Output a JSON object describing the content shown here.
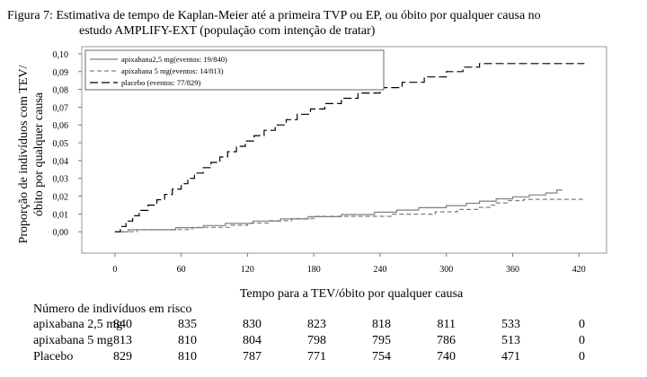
{
  "figure": {
    "caption_line1": "Figura 7: Estimativa de tempo de Kaplan-Meier até a primeira TVP ou EP, ou óbito por qualquer causa no",
    "caption_line2": "estudo AMPLIFY-EXT (população com intenção de tratar)"
  },
  "chart_data": {
    "type": "line",
    "subtype": "kaplan-meier step",
    "xlabel": "Tempo para a  TEV/óbito por qualquer causa",
    "ylabel_line1": "Proporção de indivíduos com TEV/",
    "ylabel_line2": "óbito por qualquer causa",
    "xlim": [
      -30,
      445
    ],
    "ylim": [
      -0.012,
      0.104
    ],
    "x_ticks": [
      0,
      60,
      120,
      180,
      240,
      300,
      360,
      420
    ],
    "y_ticks": [
      0.0,
      0.01,
      0.02,
      0.03,
      0.04,
      0.05,
      0.06,
      0.07,
      0.08,
      0.09,
      0.1
    ],
    "y_tick_labels": [
      "0,00",
      "0,01",
      "0,02",
      "0,03",
      "0,04",
      "0,05",
      "0,06",
      "0,07",
      "0,08",
      "0,09",
      "0,10"
    ],
    "x_tick_labels": [
      "0",
      "60",
      "120",
      "180",
      "240",
      "300",
      "360",
      "420"
    ],
    "grid": false,
    "legend_position": "top-left",
    "series": [
      {
        "name": "apixabana2,5 mg(eventos: 19/840)",
        "color": "#7f7f7f",
        "dash": "solid",
        "points": [
          [
            0,
            0.0
          ],
          [
            12,
            0.0
          ],
          [
            12,
            0.0011
          ],
          [
            55,
            0.0011
          ],
          [
            55,
            0.0023
          ],
          [
            80,
            0.0023
          ],
          [
            80,
            0.0035
          ],
          [
            100,
            0.0035
          ],
          [
            100,
            0.0047
          ],
          [
            125,
            0.0047
          ],
          [
            125,
            0.006
          ],
          [
            150,
            0.006
          ],
          [
            150,
            0.0072
          ],
          [
            175,
            0.0072
          ],
          [
            175,
            0.0085
          ],
          [
            205,
            0.0085
          ],
          [
            205,
            0.0097
          ],
          [
            235,
            0.0097
          ],
          [
            235,
            0.011
          ],
          [
            255,
            0.011
          ],
          [
            255,
            0.0122
          ],
          [
            275,
            0.0122
          ],
          [
            275,
            0.0135
          ],
          [
            300,
            0.0135
          ],
          [
            300,
            0.0147
          ],
          [
            318,
            0.0147
          ],
          [
            318,
            0.016
          ],
          [
            330,
            0.016
          ],
          [
            330,
            0.0172
          ],
          [
            345,
            0.0172
          ],
          [
            345,
            0.0185
          ],
          [
            360,
            0.0185
          ],
          [
            360,
            0.0196
          ],
          [
            375,
            0.0196
          ],
          [
            375,
            0.0207
          ],
          [
            390,
            0.0207
          ],
          [
            390,
            0.0218
          ],
          [
            400,
            0.0218
          ],
          [
            400,
            0.0235
          ],
          [
            405,
            0.0235
          ]
        ]
      },
      {
        "name": "apixabana 5 mg(eventos: 14/813)",
        "color": "#7f7f7f",
        "dash": "dashed",
        "points": [
          [
            0,
            0.0
          ],
          [
            20,
            0.0
          ],
          [
            20,
            0.0012
          ],
          [
            70,
            0.0012
          ],
          [
            70,
            0.0025
          ],
          [
            105,
            0.0025
          ],
          [
            105,
            0.0037
          ],
          [
            120,
            0.0037
          ],
          [
            120,
            0.0049
          ],
          [
            140,
            0.0049
          ],
          [
            140,
            0.0062
          ],
          [
            160,
            0.0062
          ],
          [
            160,
            0.0074
          ],
          [
            180,
            0.0074
          ],
          [
            180,
            0.0087
          ],
          [
            250,
            0.0087
          ],
          [
            250,
            0.0099
          ],
          [
            290,
            0.0099
          ],
          [
            290,
            0.0112
          ],
          [
            310,
            0.0112
          ],
          [
            310,
            0.0125
          ],
          [
            330,
            0.0125
          ],
          [
            330,
            0.0137
          ],
          [
            340,
            0.0137
          ],
          [
            340,
            0.015
          ],
          [
            345,
            0.015
          ],
          [
            345,
            0.0162
          ],
          [
            355,
            0.0162
          ],
          [
            355,
            0.0175
          ],
          [
            370,
            0.0175
          ],
          [
            370,
            0.0182
          ],
          [
            425,
            0.0182
          ]
        ]
      },
      {
        "name": "placebo (eventos: 77/829)",
        "color": "#000000",
        "dash": "longdash",
        "points": [
          [
            0,
            0.0
          ],
          [
            5,
            0.0
          ],
          [
            5,
            0.003
          ],
          [
            10,
            0.003
          ],
          [
            10,
            0.006
          ],
          [
            16,
            0.006
          ],
          [
            16,
            0.009
          ],
          [
            22,
            0.009
          ],
          [
            22,
            0.012
          ],
          [
            30,
            0.012
          ],
          [
            30,
            0.015
          ],
          [
            38,
            0.015
          ],
          [
            38,
            0.018
          ],
          [
            45,
            0.018
          ],
          [
            45,
            0.021
          ],
          [
            52,
            0.021
          ],
          [
            52,
            0.024
          ],
          [
            60,
            0.024
          ],
          [
            60,
            0.027
          ],
          [
            66,
            0.027
          ],
          [
            66,
            0.03
          ],
          [
            72,
            0.03
          ],
          [
            72,
            0.033
          ],
          [
            80,
            0.033
          ],
          [
            80,
            0.036
          ],
          [
            87,
            0.036
          ],
          [
            87,
            0.039
          ],
          [
            95,
            0.039
          ],
          [
            95,
            0.042
          ],
          [
            102,
            0.042
          ],
          [
            102,
            0.045
          ],
          [
            110,
            0.045
          ],
          [
            110,
            0.048
          ],
          [
            118,
            0.048
          ],
          [
            118,
            0.051
          ],
          [
            126,
            0.051
          ],
          [
            126,
            0.054
          ],
          [
            135,
            0.054
          ],
          [
            135,
            0.057
          ],
          [
            145,
            0.057
          ],
          [
            145,
            0.06
          ],
          [
            155,
            0.06
          ],
          [
            155,
            0.063
          ],
          [
            165,
            0.063
          ],
          [
            165,
            0.066
          ],
          [
            177,
            0.066
          ],
          [
            177,
            0.069
          ],
          [
            190,
            0.069
          ],
          [
            190,
            0.072
          ],
          [
            205,
            0.072
          ],
          [
            205,
            0.075
          ],
          [
            220,
            0.075
          ],
          [
            220,
            0.078
          ],
          [
            240,
            0.078
          ],
          [
            240,
            0.081
          ],
          [
            260,
            0.081
          ],
          [
            260,
            0.084
          ],
          [
            280,
            0.084
          ],
          [
            280,
            0.087
          ],
          [
            300,
            0.087
          ],
          [
            300,
            0.09
          ],
          [
            315,
            0.09
          ],
          [
            315,
            0.0925
          ],
          [
            330,
            0.0925
          ],
          [
            330,
            0.0945
          ],
          [
            425,
            0.0945
          ]
        ]
      }
    ]
  },
  "risk_table": {
    "title": "Número de indivíduos em risco",
    "rows": [
      {
        "label": "apixabana 2,5 mg",
        "values": [
          "840",
          "835",
          "830",
          "823",
          "818",
          "811",
          "533",
          "0"
        ]
      },
      {
        "label": "apixabana 5 mg",
        "values": [
          "813",
          "810",
          "804",
          "798",
          "795",
          "786",
          "513",
          "0"
        ]
      },
      {
        "label": "Placebo",
        "values": [
          "829",
          "810",
          "787",
          "771",
          "754",
          "740",
          "471",
          "0"
        ]
      }
    ]
  }
}
